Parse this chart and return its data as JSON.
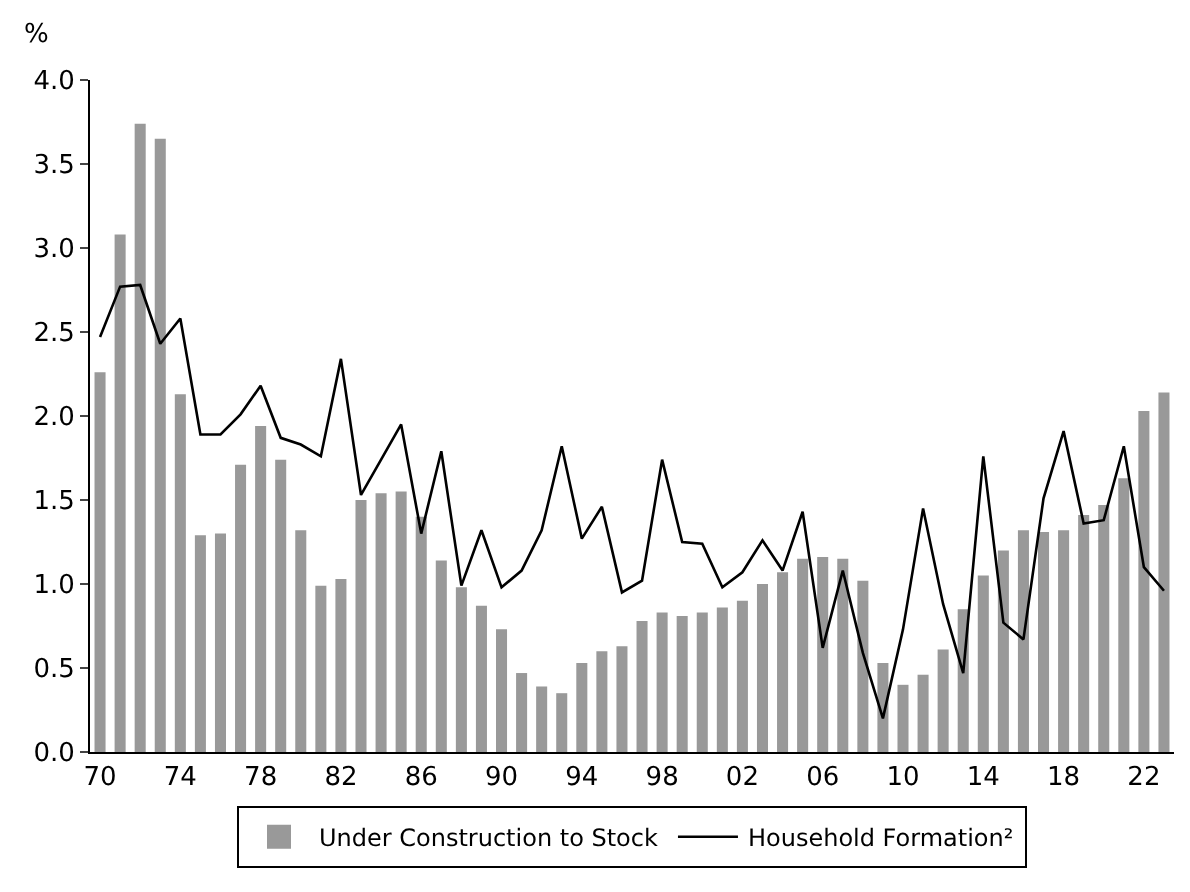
{
  "chart_data": {
    "type": "bar",
    "ylabel": "%",
    "categories": [
      "70",
      null,
      null,
      null,
      "74",
      null,
      null,
      null,
      "78",
      null,
      null,
      null,
      "82",
      null,
      null,
      null,
      "86",
      null,
      null,
      null,
      "90",
      null,
      null,
      null,
      "94",
      null,
      null,
      null,
      "98",
      null,
      null,
      null,
      "02",
      null,
      null,
      null,
      "06",
      null,
      null,
      null,
      "10",
      null,
      null,
      null,
      "14",
      null,
      null,
      null,
      "18",
      null,
      null,
      null,
      "22",
      null
    ],
    "series": [
      {
        "name": "Under Construction to Stock",
        "color": "#999999",
        "values": [
          2.26,
          3.08,
          3.74,
          3.65,
          2.13,
          1.29,
          1.3,
          1.71,
          1.94,
          1.74,
          1.32,
          0.99,
          1.03,
          1.5,
          1.54,
          1.55,
          1.4,
          1.14,
          0.98,
          0.87,
          0.73,
          0.47,
          0.39,
          0.35,
          0.53,
          0.6,
          0.63,
          0.78,
          0.83,
          0.81,
          0.83,
          0.86,
          0.9,
          1.0,
          1.07,
          1.15,
          1.16,
          1.15,
          1.02,
          0.53,
          0.4,
          0.46,
          0.61,
          0.85,
          1.05,
          1.2,
          1.32,
          1.31,
          1.32,
          1.41,
          1.47,
          1.63,
          2.03,
          2.14
        ]
      },
      {
        "name": "Household Formation²",
        "type": "line",
        "color": "#000000",
        "values": [
          2.47,
          2.77,
          2.78,
          2.43,
          2.58,
          1.89,
          1.89,
          2.01,
          2.18,
          1.87,
          1.83,
          1.76,
          2.34,
          1.53,
          1.74,
          1.95,
          1.3,
          1.79,
          0.99,
          1.32,
          0.98,
          1.08,
          1.32,
          1.82,
          1.27,
          1.46,
          0.95,
          1.02,
          1.74,
          1.25,
          1.24,
          0.98,
          1.07,
          1.26,
          1.08,
          1.43,
          0.62,
          1.08,
          0.59,
          0.2,
          0.73,
          1.45,
          0.88,
          0.47,
          1.76,
          0.77,
          0.67,
          1.51,
          1.91,
          1.36,
          1.38,
          1.82,
          1.1,
          0.96
        ]
      }
    ],
    "ylim": [
      0,
      4
    ],
    "yticks": [
      {
        "value": 0,
        "label": "0.0"
      },
      {
        "value": 0.5,
        "label": "0.5"
      },
      {
        "value": 1,
        "label": "1.0"
      },
      {
        "value": 1.5,
        "label": "1.5"
      },
      {
        "value": 2,
        "label": "2.0"
      },
      {
        "value": 2.5,
        "label": "2.5"
      },
      {
        "value": 3,
        "label": "3.0"
      },
      {
        "value": 3.5,
        "label": "3.5"
      },
      {
        "value": 4,
        "label": "4.0"
      }
    ],
    "legend": "bottom",
    "marker": "none",
    "line_style": "solid"
  }
}
